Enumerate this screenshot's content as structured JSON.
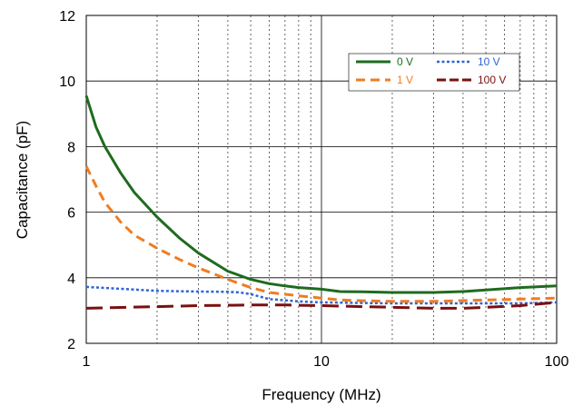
{
  "chart_data": {
    "type": "line",
    "xlabel": "Frequency (MHz)",
    "ylabel": "Capacitance (pF)",
    "xscale": "log",
    "xlim": [
      1,
      100
    ],
    "ylim": [
      2,
      12
    ],
    "xticks": [
      1,
      10,
      100
    ],
    "xtick_labels": [
      "1",
      "10",
      "100"
    ],
    "yticks": [
      2,
      4,
      6,
      8,
      10,
      12
    ],
    "ytick_labels": [
      "2",
      "4",
      "6",
      "8",
      "10",
      "12"
    ],
    "grid": true,
    "legend_position": "top-right",
    "series": [
      {
        "name": "0 V",
        "color": "#1f6b1f",
        "style": "solid",
        "x": [
          1,
          1.1,
          1.2,
          1.4,
          1.6,
          2,
          2.5,
          3,
          4,
          5,
          6,
          7,
          8,
          10,
          12,
          15,
          20,
          30,
          40,
          50,
          70,
          100
        ],
        "y": [
          9.55,
          8.6,
          8.0,
          7.2,
          6.6,
          5.85,
          5.2,
          4.75,
          4.2,
          3.95,
          3.82,
          3.75,
          3.7,
          3.65,
          3.58,
          3.57,
          3.55,
          3.55,
          3.58,
          3.63,
          3.7,
          3.75
        ]
      },
      {
        "name": "10 V",
        "color": "#2e64d4",
        "style": "dotted",
        "x": [
          1,
          1.5,
          2,
          3,
          4,
          4.5,
          5,
          6,
          8,
          10,
          15,
          20,
          30,
          50,
          70,
          100
        ],
        "y": [
          3.72,
          3.65,
          3.6,
          3.58,
          3.57,
          3.55,
          3.5,
          3.35,
          3.28,
          3.25,
          3.23,
          3.22,
          3.22,
          3.22,
          3.22,
          3.25
        ]
      },
      {
        "name": "1 V",
        "color": "#ef7d22",
        "style": "dashed",
        "x": [
          1,
          1.1,
          1.2,
          1.4,
          1.6,
          2,
          2.5,
          3,
          4,
          5,
          6,
          8,
          10,
          12,
          15,
          20,
          30,
          50,
          70,
          100
        ],
        "y": [
          7.4,
          6.8,
          6.3,
          5.7,
          5.3,
          4.9,
          4.55,
          4.3,
          3.95,
          3.7,
          3.55,
          3.45,
          3.38,
          3.32,
          3.3,
          3.28,
          3.28,
          3.32,
          3.35,
          3.38
        ]
      },
      {
        "name": "100 V",
        "color": "#7a1010",
        "style": "longdash",
        "x": [
          1,
          1.5,
          2,
          3,
          5,
          7,
          10,
          15,
          20,
          30,
          40,
          50,
          70,
          100
        ],
        "y": [
          3.07,
          3.1,
          3.12,
          3.15,
          3.17,
          3.17,
          3.15,
          3.12,
          3.1,
          3.07,
          3.07,
          3.1,
          3.15,
          3.25
        ]
      }
    ]
  }
}
